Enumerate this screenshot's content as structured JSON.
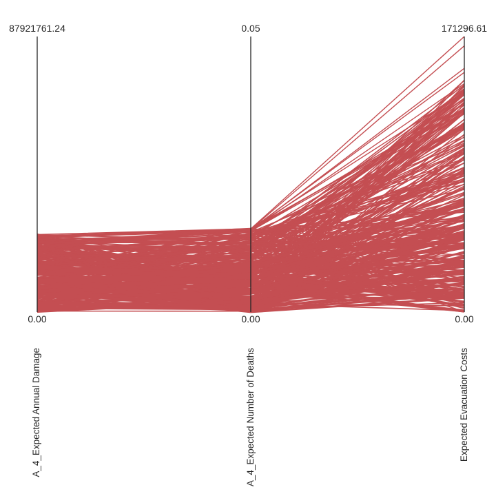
{
  "chart_data": {
    "type": "parallel_coordinates",
    "line_color": "#c44e52",
    "axes": [
      {
        "label": "A_4_Expected Annual Damage",
        "min": 0.0,
        "max": 87921761.24,
        "min_label": "0.00",
        "max_label": "87921761.24"
      },
      {
        "label": "A_4_Expected Number of Deaths",
        "min": 0.0,
        "max": 0.05,
        "min_label": "0.00",
        "max_label": "0.05"
      },
      {
        "label": "Expected Evacuation Costs",
        "min": 0.0,
        "max": 171296.61,
        "min_label": "0.00",
        "max_label": "171296.61"
      }
    ],
    "notable_lines": [
      [
        24300000,
        0.0151,
        171296.61
      ],
      [
        24100000,
        0.015,
        165500.0
      ],
      [
        23900000,
        0.0149,
        151500.0
      ],
      [
        24000000,
        0.015,
        149000.0
      ],
      [
        23700000,
        0.0148,
        142000.0
      ],
      [
        24200000,
        0.0151,
        137000.0
      ],
      [
        21100000,
        0.0147,
        126000.0
      ],
      [
        20800000,
        0.0145,
        105000.0
      ],
      [
        19200000,
        0.014,
        85000.0
      ],
      [
        17500000,
        0.0131,
        66000.0
      ],
      [
        15300000,
        0.0118,
        52000.0
      ],
      [
        22100000,
        0.0127,
        40000.0
      ],
      [
        13100000,
        0.0105,
        30000.0
      ]
    ],
    "bulk_line_count": 220,
    "bulk_ranges": [
      [
        0,
        25000000
      ],
      [
        0,
        0.0152
      ],
      [
        0,
        145000
      ]
    ],
    "grid": false,
    "legend": "none"
  }
}
